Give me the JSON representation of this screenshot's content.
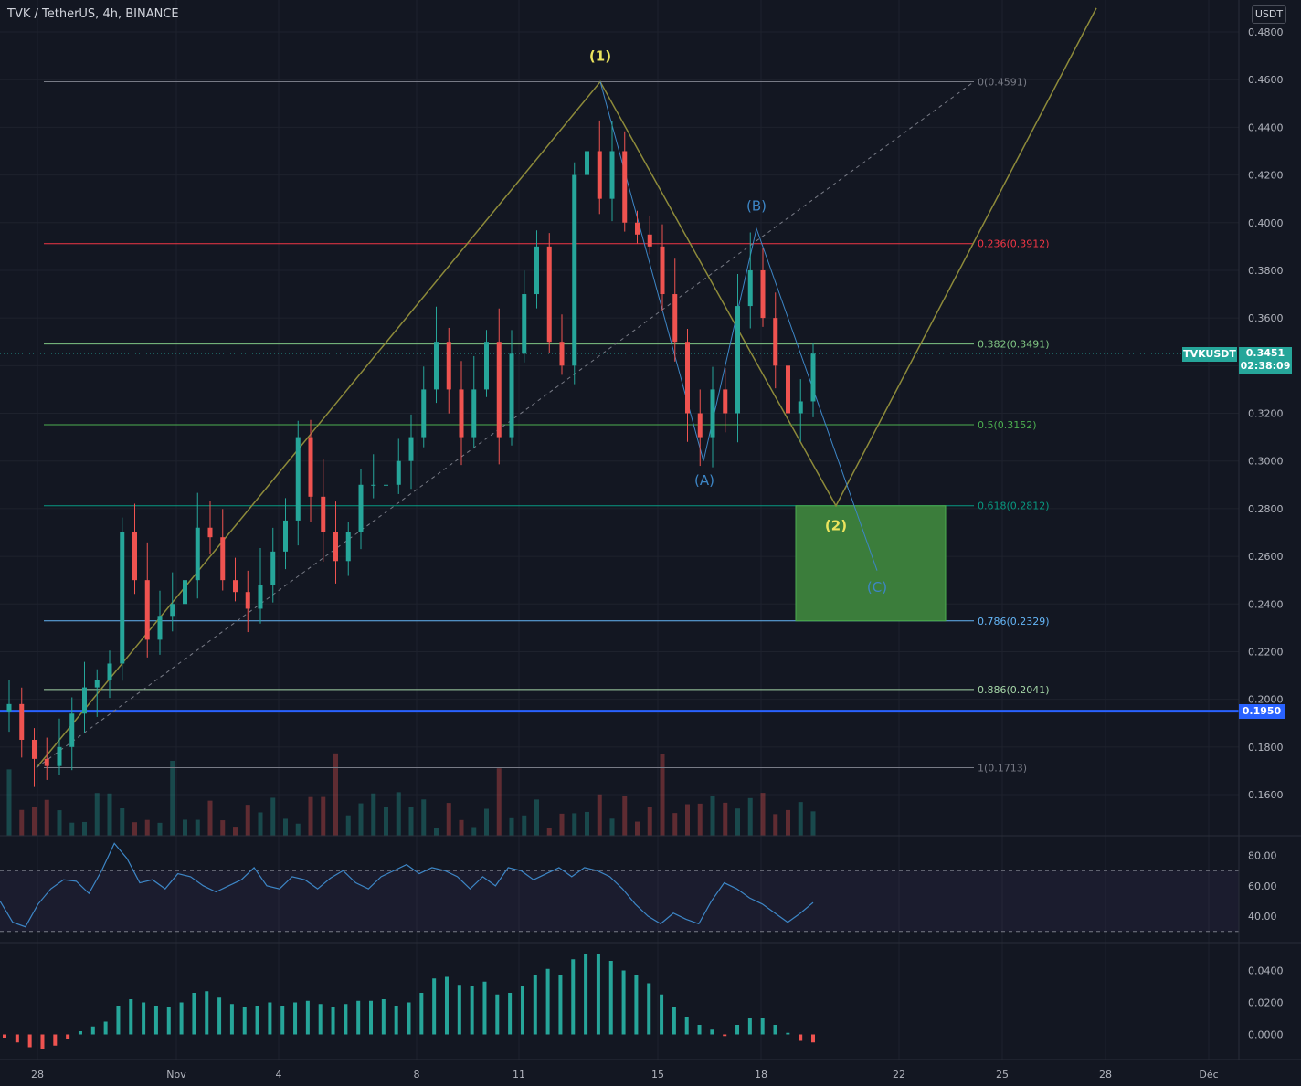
{
  "header": {
    "title": "TVK / TetherUS, 4h, BINANCE",
    "unit": "USDT"
  },
  "current": {
    "symbol": "TVKUSDT",
    "price": "0.3451",
    "countdown": "02:38:09"
  },
  "support": {
    "label": "0.1950",
    "value": 0.195
  },
  "colors": {
    "background": "#131722",
    "up": "#26a69a",
    "down": "#ef5350",
    "wave": "#8d8a3a",
    "corrective": "#3d86c6",
    "support": "#2962ff",
    "target_zone": "#3b7d3b"
  },
  "chart_data": [
    {
      "type": "candlestick",
      "title": "TVK / TetherUS, 4h, BINANCE",
      "ylim": [
        0.14,
        0.49
      ],
      "y_ticks": [
        "0.1600",
        "0.1800",
        "0.2000",
        "0.2200",
        "0.2400",
        "0.2600",
        "0.2800",
        "0.3000",
        "0.3200",
        "0.3400",
        "0.3600",
        "0.3800",
        "0.4000",
        "0.4200",
        "0.4400",
        "0.4600",
        "0.4800"
      ],
      "x_ticks": [
        "28",
        "Nov",
        "4",
        "8",
        "11",
        "15",
        "18",
        "22",
        "25",
        "28",
        "Déc"
      ],
      "close_path": [
        0.198,
        0.183,
        0.175,
        0.172,
        0.18,
        0.194,
        0.205,
        0.208,
        0.215,
        0.27,
        0.25,
        0.225,
        0.235,
        0.24,
        0.25,
        0.272,
        0.268,
        0.25,
        0.245,
        0.238,
        0.248,
        0.262,
        0.275,
        0.31,
        0.285,
        0.27,
        0.258,
        0.27,
        0.29,
        0.29,
        0.29,
        0.3,
        0.31,
        0.33,
        0.35,
        0.33,
        0.31,
        0.33,
        0.35,
        0.31,
        0.345,
        0.37,
        0.39,
        0.35,
        0.34,
        0.42,
        0.43,
        0.41,
        0.43,
        0.4,
        0.395,
        0.39,
        0.37,
        0.35,
        0.32,
        0.31,
        0.33,
        0.32,
        0.365,
        0.38,
        0.36,
        0.34,
        0.32,
        0.325,
        0.345
      ],
      "fib_levels": [
        {
          "label": "0(0.4591)",
          "value": 0.4591,
          "color": "#787b86"
        },
        {
          "label": "0.236(0.3912)",
          "value": 0.3912,
          "color": "#f23645"
        },
        {
          "label": "0.382(0.3491)",
          "value": 0.3491,
          "color": "#81c784"
        },
        {
          "label": "0.5(0.3152)",
          "value": 0.3152,
          "color": "#4caf50"
        },
        {
          "label": "0.618(0.2812)",
          "value": 0.2812,
          "color": "#089981"
        },
        {
          "label": "0.786(0.2329)",
          "value": 0.2329,
          "color": "#64b5f6"
        },
        {
          "label": "0.886(0.2041)",
          "value": 0.2041,
          "color": "#a5d6a7"
        },
        {
          "label": "1(0.1713)",
          "value": 0.1713,
          "color": "#787b86"
        }
      ],
      "waves": [
        {
          "label": "(1)",
          "color": "#ebe35d"
        },
        {
          "label": "(2)",
          "color": "#ebe35d"
        },
        {
          "label": "(A)",
          "color": "#3d86c6"
        },
        {
          "label": "(B)",
          "color": "#3d86c6"
        },
        {
          "label": "(C)",
          "color": "#3d86c6"
        }
      ],
      "target_zone": {
        "low": 0.2329,
        "high": 0.2812
      }
    },
    {
      "type": "line",
      "name": "RSI",
      "ylim": [
        25,
        90
      ],
      "y_ticks": [
        "40.00",
        "60.00",
        "80.00"
      ],
      "bands": [
        30,
        50,
        70
      ],
      "values": [
        50,
        36,
        33,
        48,
        58,
        64,
        63,
        55,
        70,
        88,
        78,
        62,
        64,
        58,
        68,
        66,
        60,
        56,
        60,
        64,
        72,
        60,
        58,
        66,
        64,
        58,
        65,
        70,
        62,
        58,
        66,
        70,
        74,
        68,
        72,
        70,
        66,
        58,
        66,
        60,
        72,
        70,
        64,
        68,
        72,
        66,
        72,
        70,
        66,
        58,
        48,
        40,
        35,
        42,
        38,
        35,
        50,
        62,
        58,
        52,
        48,
        42,
        36,
        42,
        49
      ]
    },
    {
      "type": "bar",
      "name": "Momentum histogram",
      "ylim": [
        -0.01,
        0.05
      ],
      "y_ticks": [
        "0.0000",
        "0.0200",
        "0.0400"
      ],
      "values": [
        -0.002,
        -0.005,
        -0.008,
        -0.009,
        -0.007,
        -0.003,
        0.002,
        0.005,
        0.008,
        0.018,
        0.022,
        0.02,
        0.018,
        0.017,
        0.02,
        0.026,
        0.027,
        0.023,
        0.019,
        0.017,
        0.018,
        0.02,
        0.018,
        0.02,
        0.021,
        0.019,
        0.017,
        0.019,
        0.021,
        0.021,
        0.022,
        0.018,
        0.02,
        0.026,
        0.035,
        0.036,
        0.031,
        0.03,
        0.033,
        0.025,
        0.026,
        0.03,
        0.037,
        0.041,
        0.037,
        0.047,
        0.05,
        0.05,
        0.046,
        0.04,
        0.037,
        0.032,
        0.025,
        0.017,
        0.011,
        0.006,
        0.003,
        -0.001,
        0.006,
        0.01,
        0.01,
        0.006,
        0.001,
        -0.004,
        -0.005
      ]
    }
  ]
}
